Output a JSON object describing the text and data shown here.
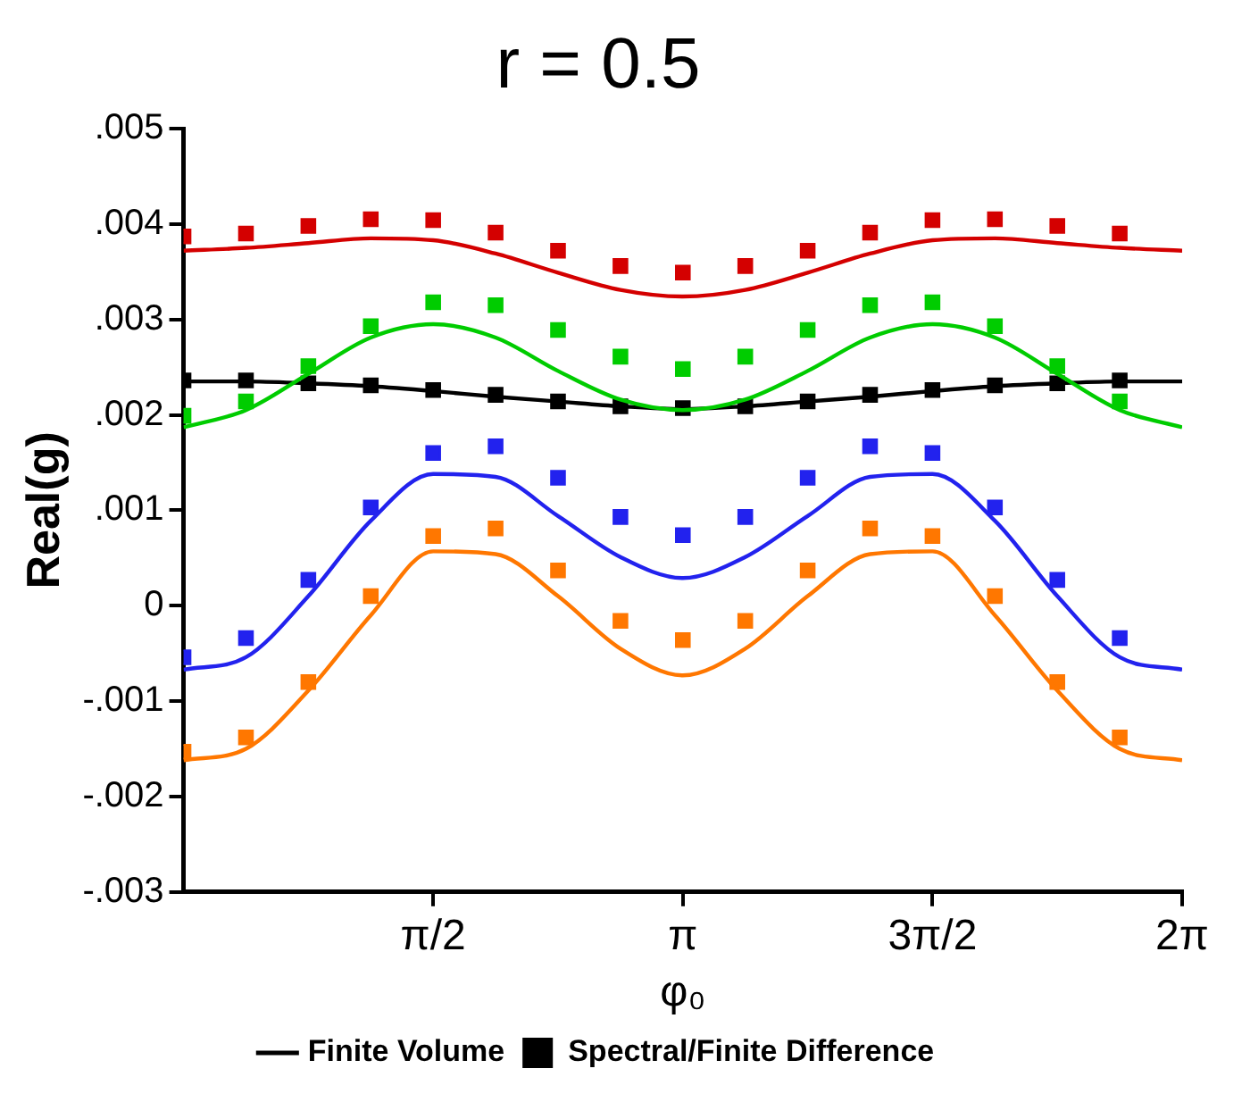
{
  "chart_data": {
    "type": "line",
    "title": "r = 0.5",
    "xlabel": "φ₀",
    "ylabel": "Real(g)",
    "xlim": [
      0,
      6.2832
    ],
    "xticks": [
      {
        "value": 1.5708,
        "label": "π/2"
      },
      {
        "value": 3.1416,
        "label": "π"
      },
      {
        "value": 4.7124,
        "label": "3π/2"
      },
      {
        "value": 6.2832,
        "label": "2π"
      }
    ],
    "ylim": [
      -0.003,
      0.005
    ],
    "yticks": [
      {
        "value": -0.003,
        "label": "-.003"
      },
      {
        "value": -0.002,
        "label": "-.002"
      },
      {
        "value": -0.001,
        "label": "-.001"
      },
      0,
      {
        "value": 0.001,
        "label": ".001"
      },
      {
        "value": 0.002,
        "label": ".002"
      },
      {
        "value": 0.003,
        "label": ".003"
      },
      {
        "value": 0.004,
        "label": ".004"
      },
      {
        "value": 0.005,
        "label": ".005"
      }
    ],
    "grid": false,
    "legend": "bottom",
    "series": [
      {
        "type": "line",
        "color": "#d40000",
        "marker": "none",
        "x": [
          0,
          0.3927,
          0.7854,
          1.1781,
          1.5708,
          1.9635,
          2.3562,
          2.7489,
          3.1416,
          3.5343,
          3.927,
          4.3197,
          4.7124,
          5.1051,
          5.4978,
          5.8905,
          6.2832
        ],
        "values": [
          0.00372,
          0.00375,
          0.0038,
          0.00385,
          0.00383,
          0.00369,
          0.00349,
          0.00331,
          0.00324,
          0.00331,
          0.00349,
          0.00369,
          0.00383,
          0.00385,
          0.0038,
          0.00375,
          0.00372
        ]
      },
      {
        "type": "line",
        "color": "#00cc00",
        "marker": "none",
        "x": [
          0,
          0.3927,
          0.7854,
          1.1781,
          1.5708,
          1.9635,
          2.3562,
          2.7489,
          3.1416,
          3.5343,
          3.927,
          4.3197,
          4.7124,
          5.1051,
          5.4978,
          5.8905,
          6.2832
        ],
        "values": [
          0.00187,
          0.00205,
          0.00243,
          0.00281,
          0.00295,
          0.00281,
          0.00246,
          0.00216,
          0.00205,
          0.00216,
          0.00246,
          0.00281,
          0.00295,
          0.00281,
          0.00243,
          0.00205,
          0.00187
        ]
      },
      {
        "type": "line",
        "name": "Finite Volume",
        "color": "#000000",
        "marker": "none",
        "x": [
          0,
          0.3927,
          0.7854,
          1.1781,
          1.5708,
          1.9635,
          2.3562,
          2.7489,
          3.1416,
          3.5343,
          3.927,
          4.3197,
          4.7124,
          5.1051,
          5.4978,
          5.8905,
          6.2832
        ],
        "values": [
          0.00235,
          0.00235,
          0.00233,
          0.0023,
          0.00225,
          0.00219,
          0.00214,
          0.00209,
          0.00206,
          0.00209,
          0.00214,
          0.00219,
          0.00225,
          0.0023,
          0.00233,
          0.00235,
          0.00235
        ]
      },
      {
        "type": "line",
        "color": "#2222ee",
        "marker": "none",
        "x": [
          0,
          0.3927,
          0.7854,
          1.1781,
          1.5708,
          1.9635,
          2.3562,
          2.7489,
          3.1416,
          3.5343,
          3.927,
          4.3197,
          4.7124,
          5.1051,
          5.4978,
          5.8905,
          6.2832
        ],
        "values": [
          -0.00067,
          -0.00054,
          0.0001,
          0.00089,
          0.00138,
          0.00135,
          0.00094,
          0.00051,
          0.00029,
          0.00051,
          0.00094,
          0.00135,
          0.00138,
          0.00089,
          0.0001,
          -0.00054,
          -0.00067
        ]
      },
      {
        "type": "line",
        "color": "#ff7700",
        "marker": "none",
        "x": [
          0,
          0.3927,
          0.7854,
          1.1781,
          1.5708,
          1.9635,
          2.3562,
          2.7489,
          3.1416,
          3.5343,
          3.927,
          4.3197,
          4.7124,
          5.1051,
          5.4978,
          5.8905,
          6.2832
        ],
        "values": [
          -0.00162,
          -0.0015,
          -0.00089,
          -0.0001,
          0.00057,
          0.00054,
          0.0001,
          -0.00045,
          -0.00073,
          -0.00045,
          0.0001,
          0.00054,
          0.00057,
          -0.0001,
          -0.00089,
          -0.0015,
          -0.00162
        ]
      },
      {
        "type": "scatter",
        "color": "#d40000",
        "marker": "square",
        "x": [
          0,
          0.3927,
          0.7854,
          1.1781,
          1.5708,
          1.9635,
          2.3562,
          2.7489,
          3.1416,
          3.5343,
          3.927,
          4.3197,
          4.7124,
          5.1051,
          5.4978,
          5.8905
        ],
        "values": [
          0.00387,
          0.0039,
          0.00398,
          0.00405,
          0.00404,
          0.00391,
          0.00372,
          0.00356,
          0.00349,
          0.00356,
          0.00372,
          0.00391,
          0.00404,
          0.00405,
          0.00398,
          0.0039
        ]
      },
      {
        "type": "scatter",
        "color": "#00cc00",
        "marker": "square",
        "x": [
          0,
          0.3927,
          0.7854,
          1.1781,
          1.5708,
          1.9635,
          2.3562,
          2.7489,
          3.1416,
          3.5343,
          3.927,
          4.3197,
          4.7124,
          5.1051,
          5.4978,
          5.8905
        ],
        "values": [
          0.00199,
          0.00214,
          0.00251,
          0.00293,
          0.00318,
          0.00315,
          0.00289,
          0.00261,
          0.00248,
          0.00261,
          0.00289,
          0.00315,
          0.00318,
          0.00293,
          0.00251,
          0.00214
        ]
      },
      {
        "type": "scatter",
        "name": "Spectral/Finite Difference",
        "color": "#000000",
        "marker": "square",
        "x": [
          0,
          0.3927,
          0.7854,
          1.1781,
          1.5708,
          1.9635,
          2.3562,
          2.7489,
          3.1416,
          3.5343,
          3.927,
          4.3197,
          4.7124,
          5.1051,
          5.4978,
          5.8905
        ],
        "values": [
          0.00236,
          0.00236,
          0.00233,
          0.00231,
          0.00226,
          0.00221,
          0.00214,
          0.00209,
          0.00207,
          0.00209,
          0.00214,
          0.00221,
          0.00226,
          0.00231,
          0.00233,
          0.00236
        ]
      },
      {
        "type": "scatter",
        "color": "#2222ee",
        "marker": "square",
        "x": [
          0,
          0.3927,
          0.7854,
          1.1781,
          1.5708,
          1.9635,
          2.3562,
          2.7489,
          3.1416,
          3.5343,
          3.927,
          4.3197,
          4.7124,
          5.1051,
          5.4978,
          5.8905
        ],
        "values": [
          -0.00054,
          -0.00034,
          0.00027,
          0.00103,
          0.0016,
          0.00167,
          0.00134,
          0.00093,
          0.00074,
          0.00093,
          0.00134,
          0.00167,
          0.0016,
          0.00103,
          0.00027,
          -0.00034
        ]
      },
      {
        "type": "scatter",
        "color": "#ff7700",
        "marker": "square",
        "x": [
          0,
          0.3927,
          0.7854,
          1.1781,
          1.5708,
          1.9635,
          2.3562,
          2.7489,
          3.1416,
          3.5343,
          3.927,
          4.3197,
          4.7124,
          5.1051,
          5.4978,
          5.8905
        ],
        "values": [
          -0.00153,
          -0.00138,
          -0.0008,
          0.0001,
          0.00073,
          0.00081,
          0.00037,
          -0.00016,
          -0.00036,
          -0.00016,
          0.00037,
          0.00081,
          0.00073,
          0.0001,
          -0.0008,
          -0.00138
        ]
      }
    ]
  }
}
